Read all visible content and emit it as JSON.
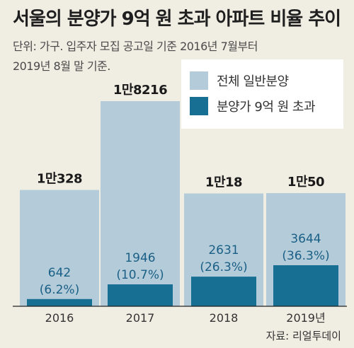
{
  "title": "서울의 분양가 9억 원 초과 아파트 비율 추이",
  "note": {
    "line1": "단위: 가구. 입주자 모집 공고일 기준 2016년 7월부터",
    "line2": "2019년 8월 말 기준."
  },
  "source": "자료: 리얼투데이",
  "colors": {
    "background": "#f0ede3",
    "total_bar": "#b4ccd9",
    "over9_bar": "#176f94",
    "legend_bg": "#ffffff",
    "sub_text": "#1a5f86"
  },
  "legend": [
    {
      "label": "전체 일반분양",
      "color": "#b4ccd9"
    },
    {
      "label": "분양가 9억 원 초과",
      "color": "#176f94"
    }
  ],
  "chart_data": {
    "type": "bar",
    "title": "서울의 분양가 9억 원 초과 아파트 비율 추이",
    "categories": [
      "2016",
      "2017",
      "2018",
      "2019년"
    ],
    "ylim": [
      0,
      18216
    ],
    "series": [
      {
        "name": "전체 일반분양",
        "values": [
          10328,
          18216,
          10018,
          10050
        ],
        "labels": [
          "1만328",
          "1만8216",
          "1만18",
          "1만50"
        ]
      },
      {
        "name": "분양가 9억 원 초과",
        "values": [
          642,
          1946,
          2631,
          3644
        ],
        "labels": [
          "642",
          "1946",
          "2631",
          "3644"
        ],
        "percent_labels": [
          "(6.2%)",
          "(10.7%)",
          "(26.3%)",
          "(36.3%)"
        ]
      }
    ]
  }
}
